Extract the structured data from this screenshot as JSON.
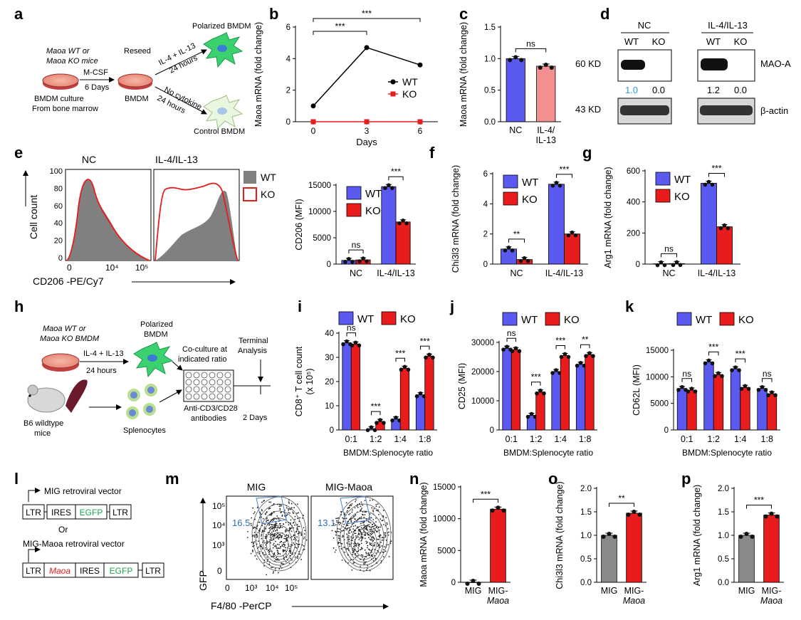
{
  "panel_letters": [
    "a",
    "b",
    "c",
    "d",
    "e",
    "f",
    "g",
    "h",
    "i",
    "j",
    "k",
    "l",
    "m",
    "n",
    "o",
    "p"
  ],
  "colors": {
    "wt": "#5a5af0",
    "ko": "#e81c1c",
    "mig": "#8a8a8a",
    "ko_light": "#f29090",
    "gate": "#4a86c8",
    "wt_label": "#2a9fd6"
  },
  "schematic_a": {
    "mice_line1": "Maoa WT or",
    "mice_line2": "Maoa KO mice",
    "culture_line1": "BMDM culture",
    "culture_line2": "From bone marrow",
    "mcsf": "M-CSF",
    "days": "6 Days",
    "reseed": "Reseed",
    "bmdm": "BMDM",
    "polarized": "Polarized BMDM",
    "il4": "IL-4 + IL-13",
    "hours1": "24 hours",
    "no_cytokine": "No cytokine",
    "hours2": "24 hours",
    "control": "Control BMDM"
  },
  "blot_d": {
    "nc": "NC",
    "il": "IL-4/IL-13",
    "wt": "WT",
    "ko": "KO",
    "kd60": "60 KD",
    "kd43": "43 KD",
    "maoa": "MAO-A",
    "actin": "β-actin",
    "quant": [
      "1.0",
      "0.0",
      "1.2",
      "0.0"
    ]
  },
  "flow_e": {
    "nc": "NC",
    "il": "IL-4/IL-13",
    "wt": "WT",
    "ko": "KO",
    "ylabel": "Cell count",
    "xlabel": "CD206 -PE/Cy7",
    "yticks": [
      "100",
      "80",
      "60",
      "40",
      "20",
      "0"
    ],
    "xticks": [
      "0",
      "10⁴",
      "10⁵"
    ]
  },
  "schematic_h": {
    "bmdm_line1": "Maoa WT or",
    "bmdm_line2": "Maoa KO BMDM",
    "il4": "IL-4 + IL-13",
    "hours": "24 hours",
    "polarized_line1": "Polarized",
    "polarized_line2": "BMDM",
    "cocult_line1": "Co-culture at",
    "cocult_line2": "indicated ratio",
    "terminal_line1": "Terminal",
    "terminal_line2": "Analysis",
    "mice_line1": "B6 wildtype",
    "mice_line2": "mice",
    "splenocytes": "Splenocytes",
    "antibody_line1": "Anti-CD3/CD28",
    "antibody_line2": "antibodies",
    "days": "2 Days"
  },
  "vector_l": {
    "title1": "MIG retroviral vector",
    "or": "Or",
    "title2": "MIG-Maoa retroviral vector",
    "ltr": "LTR",
    "ires": "IRES",
    "egfp": "EGFP",
    "maoa": "Maoa"
  },
  "flow_m": {
    "mig": "MIG",
    "mig_maoa": "MIG-Maoa",
    "ylabel": "GFP",
    "xlabel": "F4/80 -PerCP",
    "gate1": "16.5",
    "gate2": "13.1",
    "yticks": [
      "10⁵",
      "10⁴",
      "10³",
      "0"
    ],
    "xticks": [
      "0",
      "10³",
      "10⁴",
      "10⁵"
    ]
  },
  "chart_data": [
    {
      "panel": "b",
      "type": "line",
      "x": [
        0,
        3,
        6
      ],
      "series": [
        {
          "name": "WT",
          "values": [
            1.0,
            4.7,
            3.6
          ]
        },
        {
          "name": "KO",
          "values": [
            0,
            0,
            0
          ]
        }
      ],
      "xlabel": "Days",
      "ylabel": "Maoa mRNA (fold change)",
      "ylim": [
        0,
        6
      ],
      "yticks": [
        0,
        2,
        4,
        6
      ],
      "xticks": [
        0,
        3,
        6
      ],
      "sig": [
        "***",
        "***"
      ]
    },
    {
      "panel": "c",
      "type": "bar",
      "categories": [
        "NC",
        "IL-4/ IL-13"
      ],
      "values": [
        1.0,
        0.88
      ],
      "ylabel": "Maoa mRNA (fold change)",
      "ylim": [
        0,
        1.5
      ],
      "yticks": [
        "0.0",
        "0.5",
        "1.0",
        "1.5"
      ],
      "sig": [
        "ns"
      ]
    },
    {
      "panel": "e",
      "type": "bar",
      "categories": [
        "NC",
        "IL-4/IL-13"
      ],
      "series": [
        {
          "name": "WT",
          "values": [
            700,
            14700
          ]
        },
        {
          "name": "KO",
          "values": [
            800,
            8000
          ]
        }
      ],
      "ylabel": "CD206 (MFI)",
      "ylim": [
        0,
        15000
      ],
      "yticks": [
        0,
        5000,
        10000,
        15000
      ],
      "sig": [
        "ns",
        "***"
      ]
    },
    {
      "panel": "f",
      "type": "bar",
      "categories": [
        "NC",
        "IL-4/IL-13"
      ],
      "series": [
        {
          "name": "WT",
          "values": [
            1.0,
            5.3
          ]
        },
        {
          "name": "KO",
          "values": [
            0.3,
            2.0
          ]
        }
      ],
      "ylabel": "Chi3l3 mRNA (fold change)",
      "ylim": [
        0,
        6
      ],
      "yticks": [
        0,
        2,
        4,
        6
      ],
      "sig": [
        "**",
        "***"
      ]
    },
    {
      "panel": "g",
      "type": "bar",
      "categories": [
        "NC",
        "IL-4/IL-13"
      ],
      "series": [
        {
          "name": "WT",
          "values": [
            2,
            520
          ]
        },
        {
          "name": "KO",
          "values": [
            3,
            240
          ]
        }
      ],
      "ylabel": "Arg1 mRNA (fold change)",
      "ylim": [
        0,
        600
      ],
      "yticks": [
        0,
        200,
        400,
        600
      ],
      "sig": [
        "ns",
        "***"
      ]
    },
    {
      "panel": "i",
      "type": "bar",
      "categories": [
        "0:1",
        "1:2",
        "1:4",
        "1:8"
      ],
      "series": [
        {
          "name": "WT",
          "values": [
            36,
            0.5,
            4.5,
            14.5
          ]
        },
        {
          "name": "KO",
          "values": [
            35.5,
            3.5,
            25.5,
            30.5
          ]
        }
      ],
      "ylabel": "CD8⁺ T cell count (x 10⁵)",
      "xlabel": "BMDM:Splenocyte ratio",
      "ylim": [
        0,
        40
      ],
      "yticks": [
        "0",
        "10",
        "20",
        "30",
        "40"
      ],
      "sig": [
        "ns",
        "***",
        "***",
        "***"
      ]
    },
    {
      "panel": "j",
      "type": "bar",
      "categories": [
        "0:1",
        "1:2",
        "1:4",
        "1:8"
      ],
      "series": [
        {
          "name": "WT",
          "values": [
            28000,
            5000,
            20000,
            22500
          ]
        },
        {
          "name": "KO",
          "values": [
            27500,
            13000,
            25500,
            25800
          ]
        }
      ],
      "ylabel": "CD25 (MFI)",
      "xlabel": "BMDM:Splenocyte ratio",
      "ylim": [
        0,
        30000
      ],
      "yticks": [
        "0",
        "10000",
        "20000",
        "30000"
      ],
      "sig": [
        "ns",
        "***",
        "***",
        "**"
      ]
    },
    {
      "panel": "k",
      "type": "bar",
      "categories": [
        "0:1",
        "1:2",
        "1:4",
        "1:8"
      ],
      "series": [
        {
          "name": "WT",
          "values": [
            7800,
            12800,
            11500,
            7800
          ]
        },
        {
          "name": "KO",
          "values": [
            7500,
            10400,
            8000,
            6800
          ]
        }
      ],
      "ylabel": "CD62L (MFI)",
      "xlabel": "BMDM:Splenocyte ratio",
      "ylim": [
        0,
        15000
      ],
      "yticks": [
        "0",
        "5000",
        "10000",
        "15000"
      ],
      "sig": [
        "ns",
        "***",
        "***",
        "ns"
      ]
    },
    {
      "panel": "n",
      "type": "bar",
      "categories": [
        "MIG",
        "MIG- Maoa"
      ],
      "values": [
        5,
        11500
      ],
      "ylabel": "Maoa mRNA (fold change)",
      "ylim": [
        0,
        15000
      ],
      "yticks": [
        "0",
        "5000",
        "10000",
        "15000"
      ],
      "sig": [
        "***"
      ]
    },
    {
      "panel": "o",
      "type": "bar",
      "categories": [
        "MIG",
        "MIG- Maoa"
      ],
      "values": [
        1.0,
        1.47
      ],
      "ylabel": "Chi3l3 mRNA (fold change)",
      "ylim": [
        0,
        2.0
      ],
      "yticks": [
        "0.0",
        "0.5",
        "1.0",
        "1.5",
        "2.0"
      ],
      "sig": [
        "**"
      ]
    },
    {
      "panel": "p",
      "type": "bar",
      "categories": [
        "MIG",
        "MIG- Maoa"
      ],
      "values": [
        1.0,
        1.43
      ],
      "ylabel": "Arg1 mRNA (fold change)",
      "ylim": [
        0,
        2.0
      ],
      "yticks": [
        "0.0",
        "0.5",
        "1.0",
        "1.5",
        "2.0"
      ],
      "sig": [
        "***"
      ]
    }
  ]
}
